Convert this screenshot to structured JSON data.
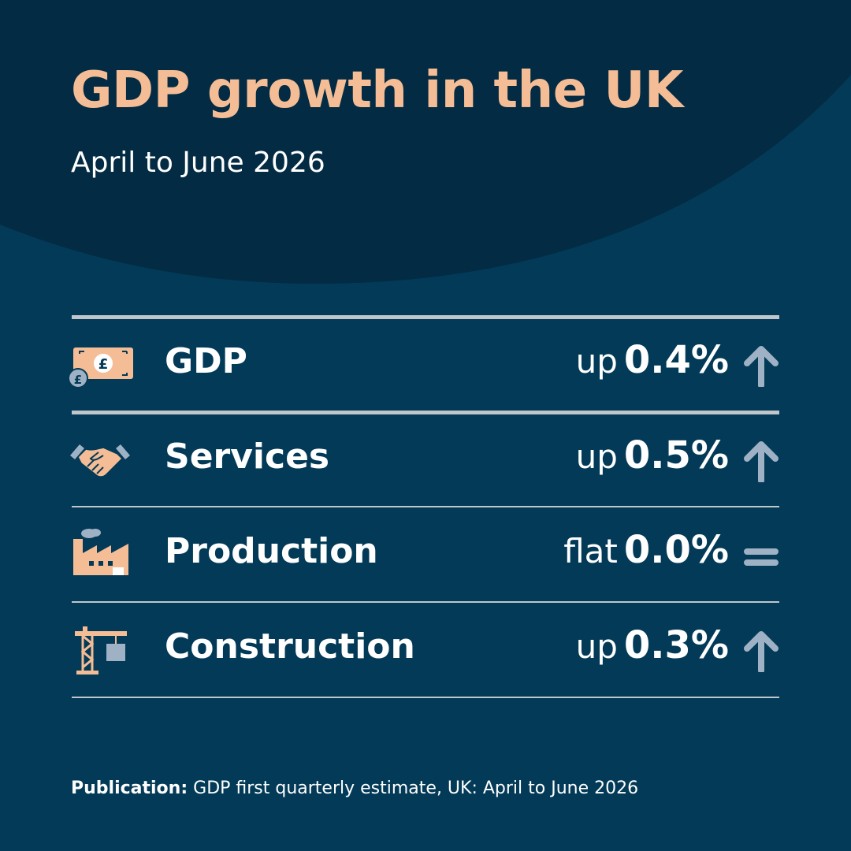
{
  "title": "GDP growth in the UK",
  "subtitle": "April to June 2026",
  "rows": [
    {
      "label": "GDP",
      "direction": "up",
      "value": "0.4%",
      "trend": "up",
      "icon": "banknote-pound-icon"
    },
    {
      "label": "Services",
      "direction": "up",
      "value": "0.5%",
      "trend": "up",
      "icon": "handshake-icon"
    },
    {
      "label": "Production",
      "direction": "flat",
      "value": "0.0%",
      "trend": "flat",
      "icon": "factory-icon"
    },
    {
      "label": "Construction",
      "direction": "up",
      "value": "0.3%",
      "trend": "up",
      "icon": "crane-icon"
    }
  ],
  "footer": {
    "prefix": "Publication:",
    "text": "GDP first quarterly estimate, UK: April to June 2026"
  },
  "colors": {
    "background": "#023a57",
    "header_dark": "#032b43",
    "accent": "#f5bd96",
    "arrow": "#9fb1c4",
    "divider": "#bfc6cc"
  }
}
